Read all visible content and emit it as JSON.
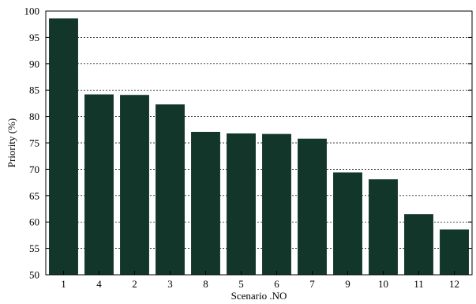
{
  "colors": {
    "bar": "#12372a",
    "grid": "#000000",
    "axis": "#000000",
    "background": "#ffffff"
  },
  "chart_data": {
    "type": "bar",
    "categories": [
      "1",
      "4",
      "2",
      "3",
      "8",
      "5",
      "6",
      "7",
      "9",
      "10",
      "11",
      "12"
    ],
    "values": [
      98.6,
      84.2,
      84.1,
      82.3,
      77.1,
      76.8,
      76.7,
      75.8,
      69.4,
      68.1,
      61.5,
      58.6
    ],
    "title": "",
    "xlabel": "Scenario .NO",
    "ylabel": "Priority (%)",
    "ylim": [
      50,
      100
    ],
    "yticks": [
      50,
      55,
      60,
      65,
      70,
      75,
      80,
      85,
      90,
      95,
      100
    ],
    "grid": "horizontal dashed",
    "legend": "none"
  }
}
